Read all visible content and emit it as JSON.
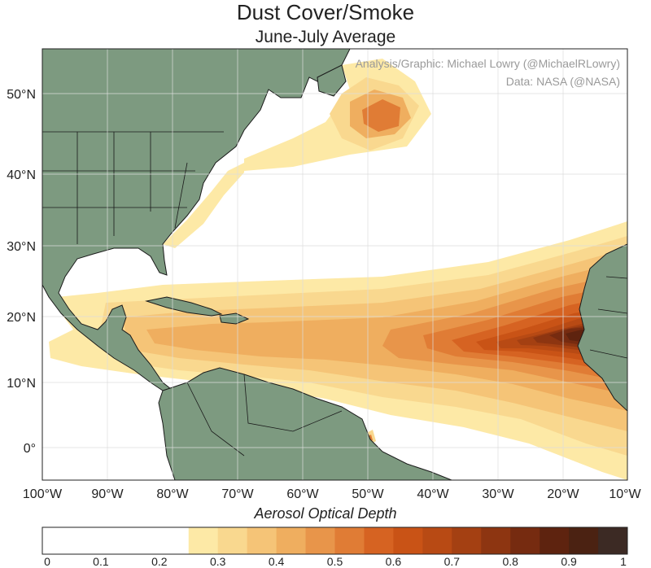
{
  "title": "Dust Cover/Smoke",
  "subtitle": "June-July Average",
  "credits": {
    "analysis": "Analysis/Graphic: Michael Lowry (@MichaelRLowry)",
    "data": "Data: NASA (@NASA)"
  },
  "map": {
    "lon_range": [
      -100,
      -10
    ],
    "lat_range": [
      -5,
      57
    ],
    "lat_ticks": [
      "50°N",
      "40°N",
      "30°N",
      "20°N",
      "10°N",
      "0°"
    ],
    "lon_ticks": [
      "100°W",
      "90°W",
      "80°W",
      "70°W",
      "60°W",
      "50°W",
      "40°W",
      "30°W",
      "20°W",
      "10°W"
    ],
    "land_color": "#7d9a80",
    "ocean_color": "#ffffff"
  },
  "colorbar": {
    "title": "Aerosol Optical Depth",
    "tick_labels": [
      "0",
      "0.1",
      "0.2",
      "0.3",
      "0.4",
      "0.5",
      "0.6",
      "0.7",
      "0.8",
      "0.9",
      "1"
    ],
    "levels": [
      0.25,
      0.3,
      0.35,
      0.4,
      0.45,
      0.5,
      0.55,
      0.6,
      0.65,
      0.7,
      0.75,
      0.8,
      0.85,
      0.9,
      0.95
    ],
    "colors": [
      "#fde9a6",
      "#f9d88f",
      "#f5c477",
      "#efae5f",
      "#e8954a",
      "#e07c35",
      "#d66322",
      "#c95316",
      "#b84a14",
      "#a44012",
      "#8d3511",
      "#762b10",
      "#5e230f",
      "#4b2212",
      "#3c2a24"
    ]
  }
}
